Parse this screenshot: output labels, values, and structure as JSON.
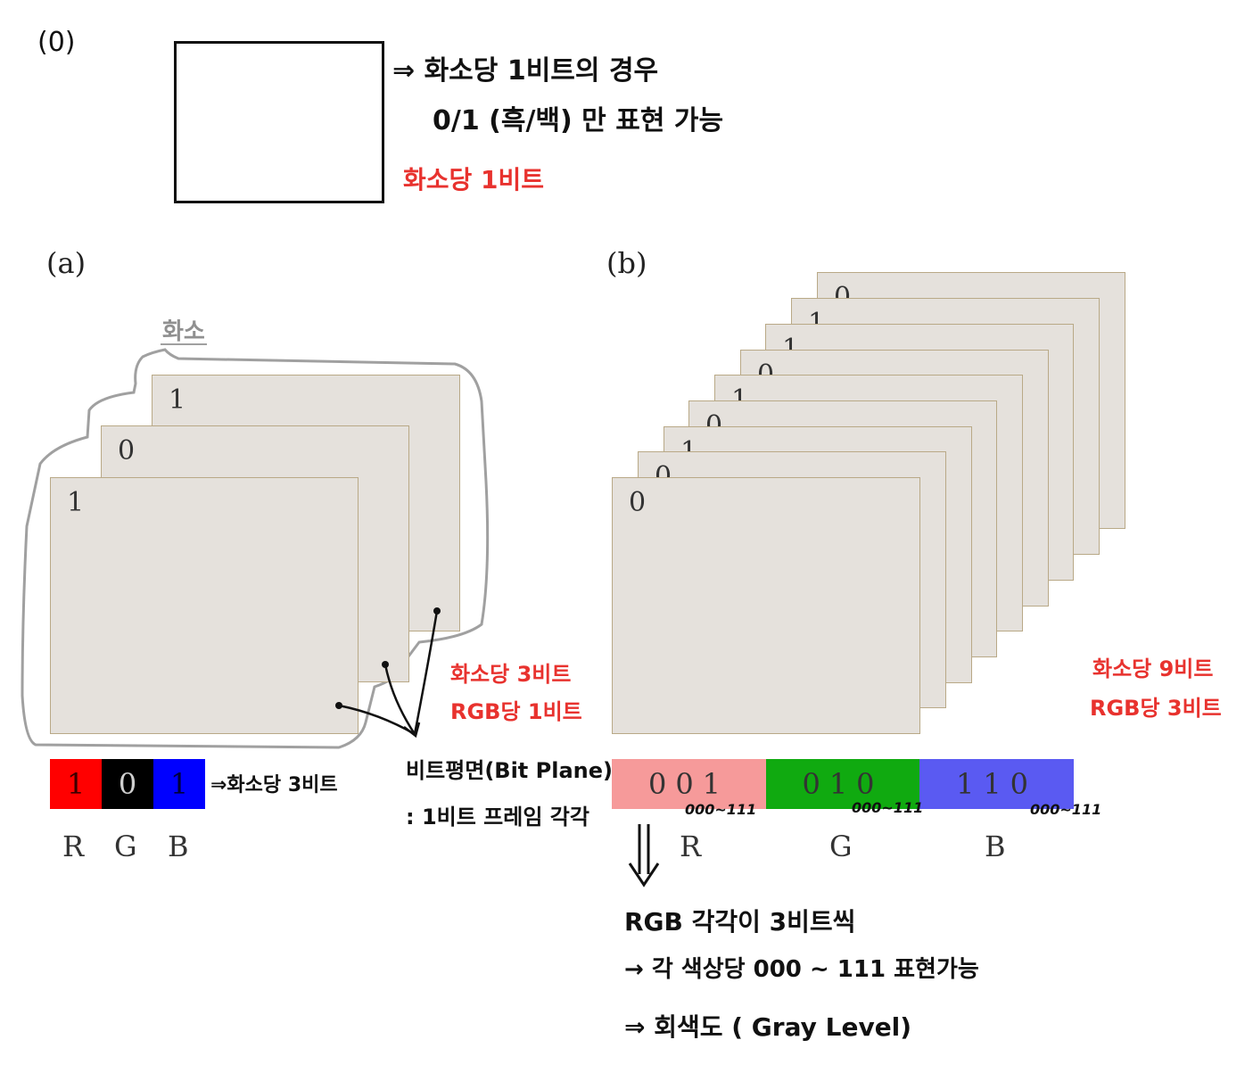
{
  "section0": {
    "label": "(0)",
    "note_line1": "⇒ 화소당 1비트의 경우",
    "note_line2": "0/1 (흑/백) 만 표현 가능",
    "red_note": "화소당 1비트"
  },
  "section_a": {
    "label": "(a)",
    "pixel_annotation": "화소",
    "frame_bits": [
      "1",
      "0",
      "1"
    ],
    "red_note_line1": "화소당 3비트",
    "red_note_line2": "RGB당 1비트",
    "bitplane_line1": "비트평면(Bit Plane)",
    "bitplane_line2": ": 1비트 프레임 각각",
    "rgb_cells": [
      {
        "value": "1",
        "bg": "#ff0000",
        "fg": "#3a0000"
      },
      {
        "value": "0",
        "bg": "#000000",
        "fg": "#cfcfcf"
      },
      {
        "value": "1",
        "bg": "#0000ff",
        "fg": "#00003a"
      }
    ],
    "rgb_note": "⇒화소당 3비트",
    "rgb_labels": [
      "R",
      "G",
      "B"
    ]
  },
  "section_b": {
    "label": "(b)",
    "frame_bits": [
      "0",
      "1",
      "1",
      "0",
      "1",
      "0",
      "1",
      "0",
      "0"
    ],
    "red_note_line1": "화소당 9비트",
    "red_note_line2": "RGB당 3비트",
    "segments": [
      {
        "value": "001",
        "bg": "#f69a9a",
        "range": "000~111"
      },
      {
        "value": "010",
        "bg": "#10aa10",
        "range": "000~111"
      },
      {
        "value": "110",
        "bg": "#5a5af2",
        "range": "000~111"
      }
    ],
    "rgb_labels": [
      "R",
      "G",
      "B"
    ],
    "bottom_note_line1": "RGB 각각이 3비트씩",
    "bottom_note_line2": "→ 각 색상당 000 ~ 111 표현가능",
    "bottom_note_line3": "⇒ 회색도 ( Gray Level)"
  },
  "colors": {
    "frame_fill": "#e5e1dc",
    "frame_border": "#b9a987",
    "annotation_red": "#e8322e",
    "outline_gray": "#a0a0a0"
  }
}
